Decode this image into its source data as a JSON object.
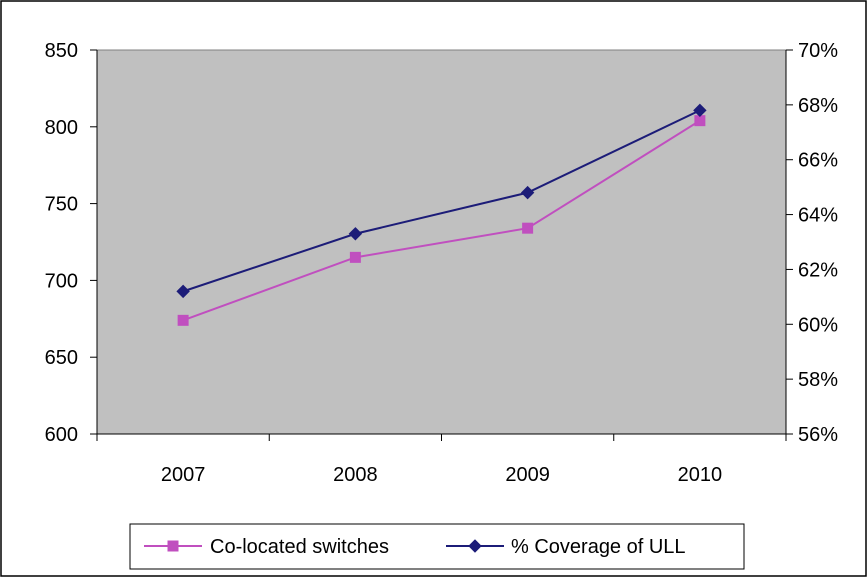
{
  "chart_data": {
    "type": "line",
    "categories": [
      "2007",
      "2008",
      "2009",
      "2010"
    ],
    "y_left": {
      "min": 600,
      "max": 850,
      "step": 50,
      "ticks": [
        "600",
        "650",
        "700",
        "750",
        "800",
        "850"
      ]
    },
    "y_right": {
      "min": 56,
      "max": 70,
      "step": 2,
      "unit": "%",
      "ticks": [
        "56%",
        "58%",
        "60%",
        "62%",
        "64%",
        "66%",
        "68%",
        "70%"
      ]
    },
    "series": [
      {
        "name": "Co-located switches",
        "axis": "left",
        "values": [
          674,
          715,
          734,
          804
        ],
        "color": "#c04fbf",
        "marker": "square"
      },
      {
        "name": "% Coverage of ULL",
        "axis": "right",
        "values": [
          61.2,
          63.3,
          64.8,
          67.8
        ],
        "color": "#1c1c78",
        "marker": "diamond"
      }
    ],
    "plot_background": "#c0c0c0",
    "grid": false,
    "legend_position": "bottom"
  }
}
